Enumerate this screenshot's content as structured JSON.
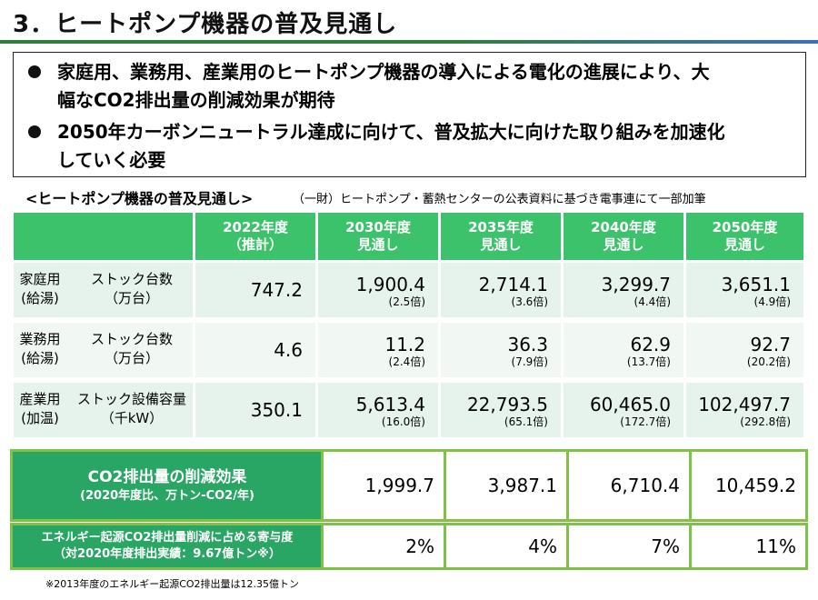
{
  "title": "3．ヒートポンプ機器の普及見通し",
  "bullets": [
    {
      "line1": "家庭用、業務用、産業用のヒートポンプ機器の導入による電化の進展により、大",
      "line2": "幅なCO2排出量の削減効果が期待"
    },
    {
      "line1": "2050年カーボンニュートラル達成に向けて、普及拡大に向けた取り組みを加速化",
      "line2": "していく必要"
    }
  ],
  "subtitle": "<ヒートポンプ機器の普及見通し>",
  "source": "（一財）ヒートポンプ・蓄熱センターの公表資料に基づき電事連にて一部加筆",
  "columns": [
    {
      "l1": "2022年度",
      "l2": "（推計）"
    },
    {
      "l1": "2030年度",
      "l2": "見通し"
    },
    {
      "l1": "2035年度",
      "l2": "見通し"
    },
    {
      "l1": "2040年度",
      "l2": "見通し"
    },
    {
      "l1": "2050年度",
      "l2": "見通し"
    }
  ],
  "rows": [
    {
      "cat1": "家庭用",
      "cat2": "(給湯)",
      "metric1": "ストック台数",
      "metric2": "（万台）",
      "values": [
        {
          "v": "747.2",
          "m": ""
        },
        {
          "v": "1,900.4",
          "m": "(2.5倍)"
        },
        {
          "v": "2,714.1",
          "m": "(3.6倍)"
        },
        {
          "v": "3,299.7",
          "m": "(4.4倍)"
        },
        {
          "v": "3,651.1",
          "m": "(4.9倍)"
        }
      ]
    },
    {
      "cat1": "業務用",
      "cat2": "(給湯)",
      "metric1": "ストック台数",
      "metric2": "（万台）",
      "values": [
        {
          "v": "4.6",
          "m": ""
        },
        {
          "v": "11.2",
          "m": "(2.4倍)"
        },
        {
          "v": "36.3",
          "m": "(7.9倍)"
        },
        {
          "v": "62.9",
          "m": "(13.7倍)"
        },
        {
          "v": "92.7",
          "m": "(20.2倍)"
        }
      ]
    },
    {
      "cat1": "産業用",
      "cat2": "(加温)",
      "metric1": "ストック設備容量",
      "metric2": "（千kW）",
      "values": [
        {
          "v": "350.1",
          "m": ""
        },
        {
          "v": "5,613.4",
          "m": "(16.0倍)"
        },
        {
          "v": "22,793.5",
          "m": "(65.1倍)"
        },
        {
          "v": "60,465.0",
          "m": "(172.7倍)"
        },
        {
          "v": "102,497.7",
          "m": "(292.8倍)"
        }
      ]
    }
  ],
  "effect": {
    "l1": "CO2排出量の削減効果",
    "l2": "(2020年度比、万トン-CO2/年)",
    "values": [
      "1,999.7",
      "3,987.1",
      "6,710.4",
      "10,459.2"
    ]
  },
  "share": {
    "l1": "エネルギー起源CO2排出量削減に占める寄与度",
    "l2": "（対2020年度排出実績：9.67億トン※）",
    "values": [
      "2%",
      "4%",
      "7%",
      "11%"
    ]
  },
  "footnote": "※2013年度のエネルギー起源CO2排出量は12.35億トン",
  "colors": {
    "header_green": "#3cc26b",
    "label_green": "#2aa664",
    "border_green": "#7fc247",
    "row_tint_a": "#e6f3ec",
    "row_tint_b": "#f1f8f3"
  }
}
